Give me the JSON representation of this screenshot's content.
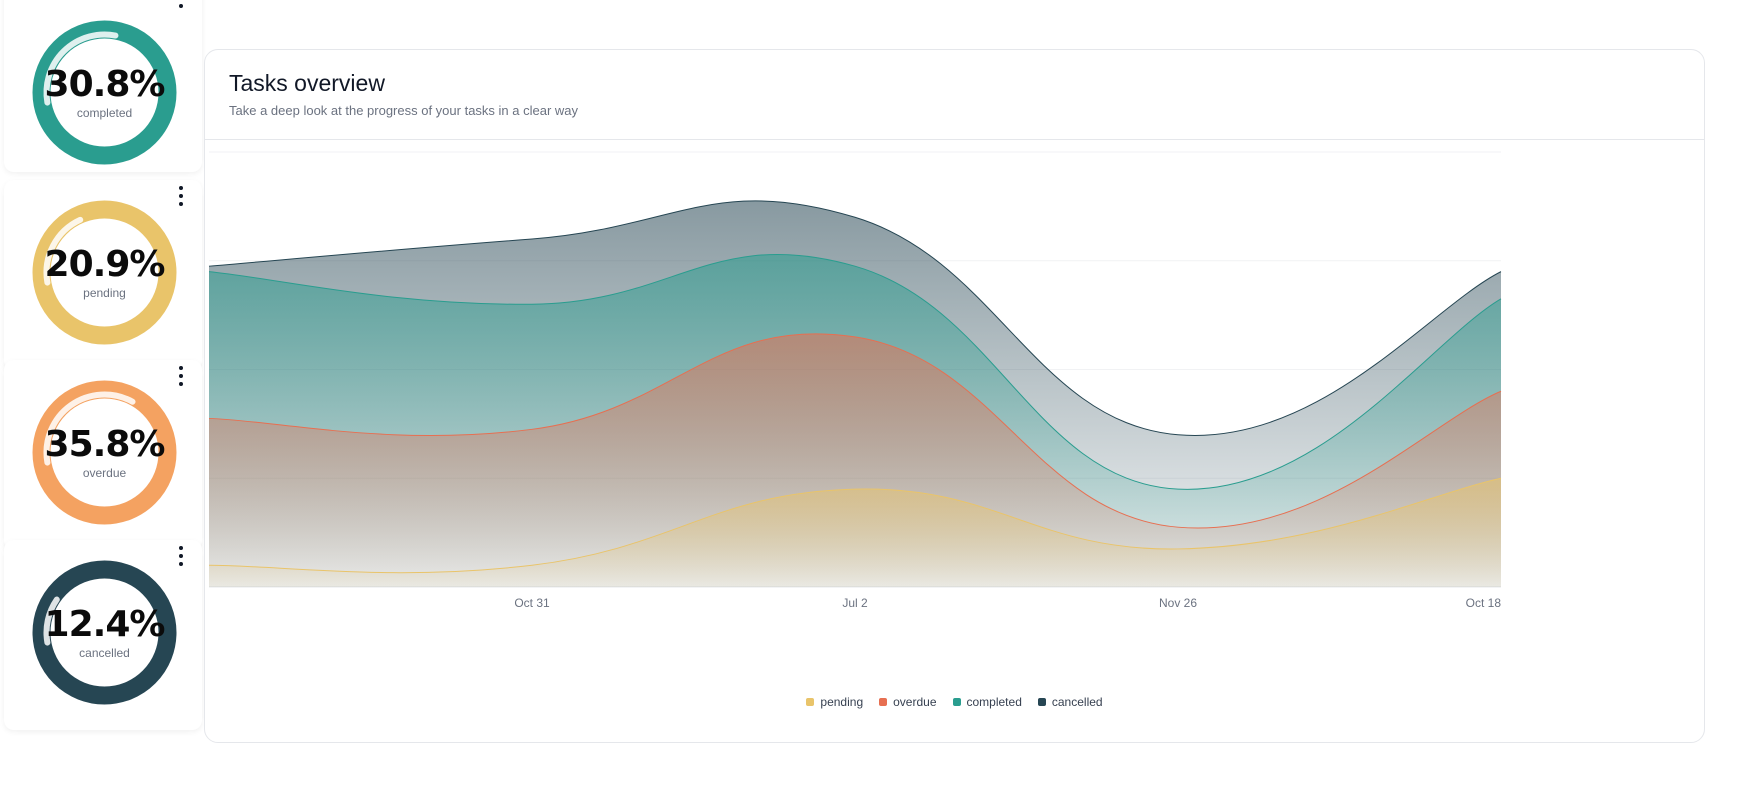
{
  "kpis": [
    {
      "value": "30.8%",
      "label": "completed",
      "fraction": 0.308,
      "color": "#2a9d8f"
    },
    {
      "value": "20.9%",
      "label": "pending",
      "fraction": 0.209,
      "color": "#e9c46a"
    },
    {
      "value": "35.8%",
      "label": "overdue",
      "fraction": 0.358,
      "color": "#f4a261"
    },
    {
      "value": "12.4%",
      "label": "cancelled",
      "fraction": 0.124,
      "color": "#264653"
    }
  ],
  "chart": {
    "title": "Tasks overview",
    "subtitle": "Take a deep look at the progress of your tasks in a clear way"
  },
  "chart_data": {
    "type": "area",
    "stacked": true,
    "categories": [
      "",
      "Oct 31",
      "Jul 2",
      "Nov 26",
      "Oct 18"
    ],
    "series": [
      {
        "name": "pending",
        "color": "#e9c46a",
        "values": [
          4,
          4,
          18,
          7,
          20
        ]
      },
      {
        "name": "overdue",
        "color": "#e76f51",
        "values": [
          27,
          25,
          28,
          4,
          16
        ]
      },
      {
        "name": "completed",
        "color": "#2a9d8f",
        "values": [
          27,
          23,
          13,
          7,
          17
        ]
      },
      {
        "name": "cancelled",
        "color": "#264653",
        "values": [
          1,
          12,
          9,
          10,
          5
        ]
      }
    ],
    "ylim": [
      0,
      80
    ],
    "grid": true,
    "legend": "bottom-center"
  },
  "legend": [
    "pending",
    "overdue",
    "completed",
    "cancelled"
  ]
}
